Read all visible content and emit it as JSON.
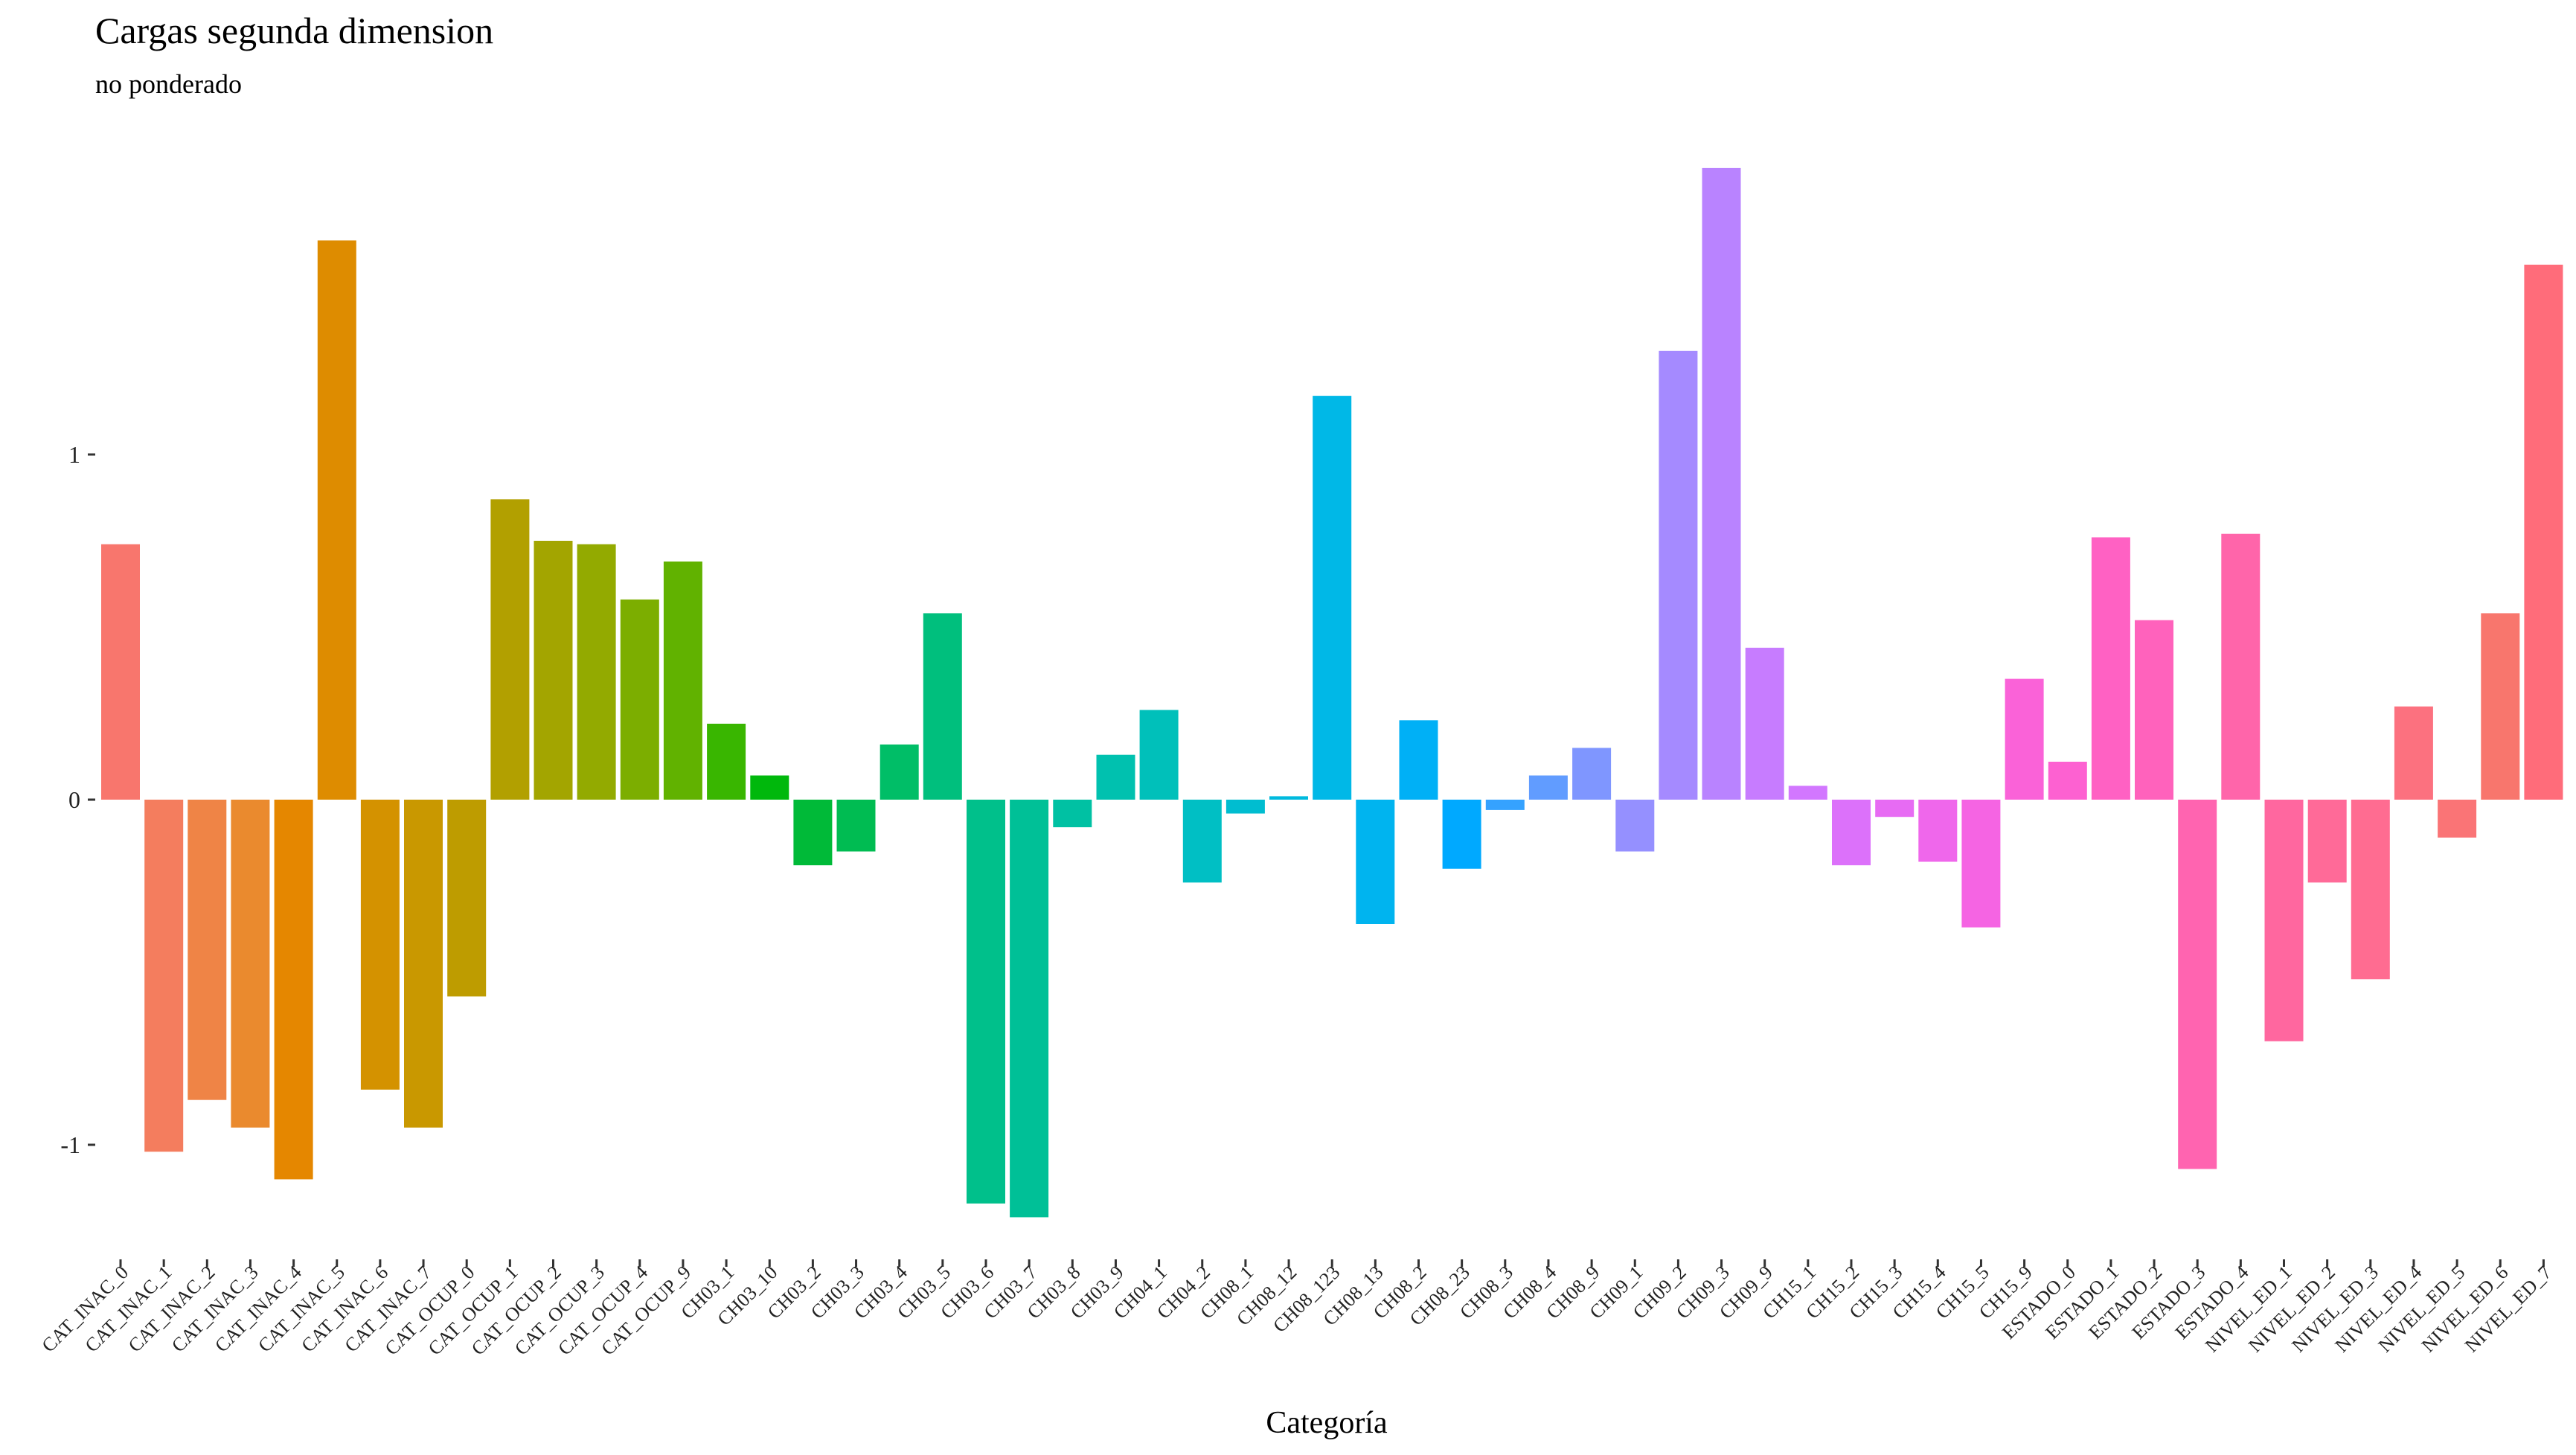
{
  "chart_data": {
    "type": "bar",
    "title": "Cargas segunda dimension",
    "subtitle": "no ponderado",
    "xlabel": "Categoría",
    "ylabel": "",
    "ylim": [
      -1.22,
      1.83
    ],
    "y_ticks": [
      -1,
      0,
      1
    ],
    "y_tick_labels": [
      "-1",
      "0",
      "1"
    ],
    "grid": false,
    "legend": "none",
    "categories": [
      "CAT_INAC_0",
      "CAT_INAC_1",
      "CAT_INAC_2",
      "CAT_INAC_3",
      "CAT_INAC_4",
      "CAT_INAC_5",
      "CAT_INAC_6",
      "CAT_INAC_7",
      "CAT_OCUP_0",
      "CAT_OCUP_1",
      "CAT_OCUP_2",
      "CAT_OCUP_3",
      "CAT_OCUP_4",
      "CAT_OCUP_9",
      "CH03_1",
      "CH03_10",
      "CH03_2",
      "CH03_3",
      "CH03_4",
      "CH03_5",
      "CH03_6",
      "CH03_7",
      "CH03_8",
      "CH03_9",
      "CH04_1",
      "CH04_2",
      "CH08_1",
      "CH08_12",
      "CH08_123",
      "CH08_13",
      "CH08_2",
      "CH08_23",
      "CH08_3",
      "CH08_4",
      "CH08_9",
      "CH09_1",
      "CH09_2",
      "CH09_3",
      "CH09_9",
      "CH15_1",
      "CH15_2",
      "CH15_3",
      "CH15_4",
      "CH15_5",
      "CH15_9",
      "ESTADO_0",
      "ESTADO_1",
      "ESTADO_2",
      "ESTADO_3",
      "ESTADO_4",
      "NIVEL_ED_1",
      "NIVEL_ED_2",
      "NIVEL_ED_3",
      "NIVEL_ED_4",
      "NIVEL_ED_5",
      "NIVEL_ED_6",
      "NIVEL_ED_7"
    ],
    "values": [
      0.74,
      -1.02,
      -0.87,
      -0.95,
      -1.1,
      1.62,
      -0.84,
      -0.95,
      -0.57,
      0.87,
      0.75,
      0.74,
      0.58,
      0.69,
      0.22,
      0.07,
      -0.19,
      -0.15,
      0.16,
      0.54,
      -1.17,
      -1.21,
      -0.08,
      0.13,
      0.26,
      -0.24,
      -0.04,
      0.01,
      1.17,
      -0.36,
      0.23,
      -0.2,
      -0.03,
      0.07,
      0.15,
      -0.15,
      1.3,
      1.83,
      0.44,
      0.04,
      -0.19,
      -0.05,
      -0.18,
      -0.37,
      0.35,
      0.11,
      0.76,
      0.52,
      -1.07,
      0.77,
      -0.7,
      -0.24,
      -0.52,
      0.27,
      -0.11,
      0.54,
      1.55
    ],
    "colors": [
      "#F8766D",
      "#F47D5E",
      "#EF8446",
      "#EA8A2E",
      "#E58700",
      "#DE8C00",
      "#D49200",
      "#C99800",
      "#BE9C00",
      "#B2A000",
      "#A3A500",
      "#93AA00",
      "#7CAE00",
      "#61B200",
      "#39B600",
      "#00B80C",
      "#00BA38",
      "#00BC52",
      "#00BE67",
      "#00BF7D",
      "#00C08B",
      "#00C097",
      "#00C1A3",
      "#00C1AF",
      "#00C0BA",
      "#00BFC4",
      "#00BDD0",
      "#00BADE",
      "#00B8E7",
      "#00B4EF",
      "#00B0F6",
      "#00A9FF",
      "#35A2FF",
      "#619CFF",
      "#7F96FF",
      "#9590FF",
      "#A58AFF",
      "#B983FF",
      "#C77CFF",
      "#D277FF",
      "#DC71FA",
      "#E76BF3",
      "#EF67EB",
      "#F564E3",
      "#FA62D8",
      "#FD61D1",
      "#FF61C3",
      "#FF62BC",
      "#FF64B0",
      "#FF65AA",
      "#FF679F",
      "#FF6A98",
      "#FF6C91",
      "#FC717F",
      "#FA7476",
      "#F8766D",
      "#FF6C7A"
    ]
  }
}
